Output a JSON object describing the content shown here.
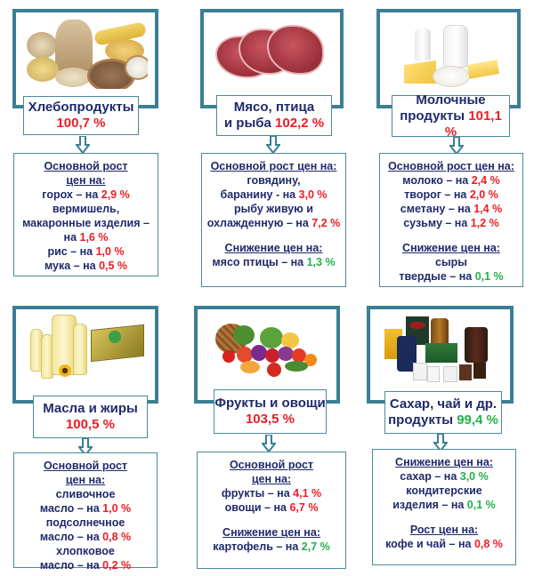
{
  "categories": [
    {
      "id": "bread",
      "name_lines": [
        "Хлебопродукты"
      ],
      "index_prefix": "",
      "index": "100,7 %",
      "index_color": "red",
      "image_icon": "grain-products-photo",
      "info": [
        {
          "type": "header",
          "text": "Основной рост"
        },
        {
          "type": "header",
          "text": "цен на:"
        },
        {
          "type": "item",
          "text": "горох – на ",
          "value": "2,9 %",
          "color": "red"
        },
        {
          "type": "text",
          "text": "вермишель,"
        },
        {
          "type": "text",
          "text": "макаронные изделия –"
        },
        {
          "type": "item",
          "text": "на ",
          "value": "1,6 %",
          "color": "red"
        },
        {
          "type": "item",
          "text": "рис – на ",
          "value": "1,0 %",
          "color": "red"
        },
        {
          "type": "item",
          "text": "мука – на ",
          "value": "0,5 %",
          "color": "red"
        }
      ]
    },
    {
      "id": "meat",
      "name_lines": [
        "Мясо, птица"
      ],
      "index_prefix": "и рыба ",
      "index": "102,2 %",
      "index_color": "red",
      "image_icon": "meat-photo",
      "info": [
        {
          "type": "header",
          "text": "Основной рост цен на:"
        },
        {
          "type": "text",
          "text": "говядину,"
        },
        {
          "type": "item",
          "text": "баранину - на ",
          "value": "3,0 %",
          "color": "red"
        },
        {
          "type": "text",
          "text": "рыбу живую и"
        },
        {
          "type": "item",
          "text": "охлажденную – на ",
          "value": "7,2 %",
          "color": "red"
        },
        {
          "type": "gap"
        },
        {
          "type": "header",
          "text": "Снижение цен на:"
        },
        {
          "type": "item",
          "text": "мясо птицы  – на ",
          "value": "1,3 %",
          "color": "green"
        }
      ]
    },
    {
      "id": "dairy",
      "name_lines": [
        "Молочные"
      ],
      "index_prefix": "продукты ",
      "index": "101,1 %",
      "index_color": "red",
      "image_icon": "dairy-products-photo",
      "info": [
        {
          "type": "header",
          "text": "Основной рост цен на:"
        },
        {
          "type": "item",
          "text": "молоко – на ",
          "value": "2,4 %",
          "color": "red"
        },
        {
          "type": "item",
          "text": "творог – на ",
          "value": "2,0 %",
          "color": "red"
        },
        {
          "type": "item",
          "text": "сметану – на ",
          "value": "1,4 %",
          "color": "red"
        },
        {
          "type": "item",
          "text": "сузьму – на ",
          "value": "1,2 %",
          "color": "red"
        },
        {
          "type": "gap"
        },
        {
          "type": "header",
          "text": "Снижение цен на:"
        },
        {
          "type": "text",
          "text": "сыры"
        },
        {
          "type": "item",
          "text": "твердые – на ",
          "value": "0,1 %",
          "color": "green"
        }
      ]
    },
    {
      "id": "oils",
      "name_lines": [
        "Масла и жиры"
      ],
      "index_prefix": "",
      "index": "100,5 %",
      "index_color": "red",
      "image_icon": "oils-and-fats-photo",
      "info": [
        {
          "type": "header",
          "text": "Основной рост"
        },
        {
          "type": "header",
          "text": "цен на:"
        },
        {
          "type": "text",
          "text": "сливочное"
        },
        {
          "type": "item",
          "text": "масло – на ",
          "value": "1,0 %",
          "color": "red"
        },
        {
          "type": "text",
          "text": "подсолнечное"
        },
        {
          "type": "item",
          "text": "масло – на ",
          "value": "0,8 %",
          "color": "red"
        },
        {
          "type": "text",
          "text": "хлопковое"
        },
        {
          "type": "item",
          "text": "масло  – на ",
          "value": "0,2 %",
          "color": "red"
        }
      ]
    },
    {
      "id": "fruits",
      "name_lines": [
        "Фрукты и овощи"
      ],
      "index_prefix": "",
      "index": "103,5 %",
      "index_color": "red",
      "image_icon": "fruits-vegetables-photo",
      "info": [
        {
          "type": "header",
          "text": "Основной рост"
        },
        {
          "type": "header",
          "text": "цен на:"
        },
        {
          "type": "item",
          "text": "фрукты – на ",
          "value": "4,1 %",
          "color": "red"
        },
        {
          "type": "item",
          "text": "овощи – на ",
          "value": "6,7 %",
          "color": "red"
        },
        {
          "type": "gap"
        },
        {
          "type": "header",
          "text": "Снижение цен на:"
        },
        {
          "type": "item",
          "text": "картофель – на ",
          "value": "2,7 %",
          "color": "green"
        }
      ]
    },
    {
      "id": "sugar",
      "name_lines": [
        "Сахар, чай и др."
      ],
      "index_prefix": "продукты ",
      "index": "99,4 %",
      "index_color": "green",
      "image_icon": "sugar-tea-coffee-photo",
      "info": [
        {
          "type": "header",
          "text": "Снижение цен на:"
        },
        {
          "type": "item",
          "text": "сахар – на ",
          "value": "3,0 %",
          "color": "green"
        },
        {
          "type": "text",
          "text": "кондитерские"
        },
        {
          "type": "item",
          "text": "изделия – на ",
          "value": "0,1 %",
          "color": "green"
        },
        {
          "type": "gap"
        },
        {
          "type": "header",
          "text": "Рост цен на:"
        },
        {
          "type": "item",
          "text": "кофе и чай – на ",
          "value": "0,8 %",
          "color": "red"
        }
      ]
    }
  ],
  "colors": {
    "frame": "#3a7f95",
    "text": "#1f2a6b",
    "increase": "#ee1c25",
    "decrease": "#22b24c"
  }
}
